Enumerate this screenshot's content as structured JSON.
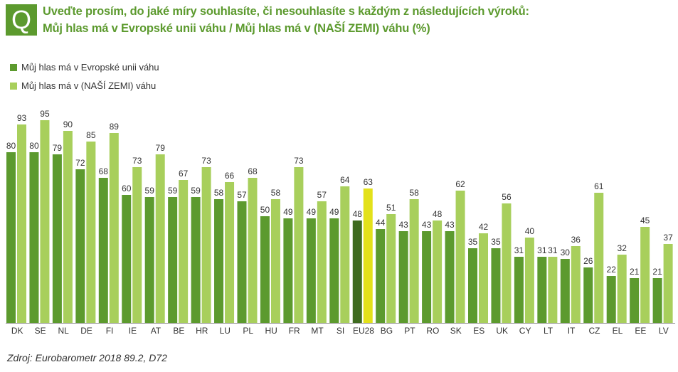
{
  "header": {
    "icon_letter": "Q",
    "title_line1": "Uveďte prosím, do jaké míry souhlasíte, či nesouhlasíte s každým z následujících výroků:",
    "title_line2": "Můj hlas má v Evropské unii váhu / Můj hlas má v (NAŠÍ ZEMI) váhu (%)"
  },
  "legend": {
    "eu_label": "Můj hlas má v Evropské unii váhu",
    "country_label": "Můj hlas má v (NAŠÍ ZEMI) váhu"
  },
  "source": "Zdroj: Eurobarometr 2018 89.2, D72",
  "colors": {
    "eu": "#5c9a2e",
    "country": "#a8cf5c",
    "eu28_eu": "#3e6a1f",
    "eu28_country": "#e3e11a",
    "title": "#5c9a2e"
  },
  "chart_data": {
    "type": "bar",
    "categories": [
      "DK",
      "SE",
      "NL",
      "DE",
      "FI",
      "IE",
      "AT",
      "BE",
      "HR",
      "LU",
      "PL",
      "HU",
      "FR",
      "MT",
      "SI",
      "EU28",
      "BG",
      "PT",
      "RO",
      "SK",
      "ES",
      "UK",
      "CY",
      "LT",
      "IT",
      "CZ",
      "EL",
      "EE",
      "LV"
    ],
    "series": [
      {
        "name": "Můj hlas má v Evropské unii váhu",
        "values": [
          80,
          80,
          79,
          72,
          68,
          60,
          59,
          59,
          59,
          58,
          57,
          50,
          49,
          49,
          49,
          48,
          44,
          43,
          43,
          43,
          35,
          35,
          31,
          31,
          30,
          26,
          22,
          21,
          21
        ]
      },
      {
        "name": "Můj hlas má v (NAŠÍ ZEMI) váhu",
        "values": [
          93,
          95,
          90,
          85,
          89,
          73,
          79,
          67,
          73,
          66,
          68,
          58,
          73,
          57,
          64,
          63,
          51,
          58,
          48,
          62,
          42,
          56,
          40,
          31,
          36,
          61,
          32,
          45,
          37
        ]
      }
    ],
    "highlight_category": "EU28",
    "ylim": [
      0,
      100
    ],
    "grid": false,
    "legend_position": "top-left"
  }
}
